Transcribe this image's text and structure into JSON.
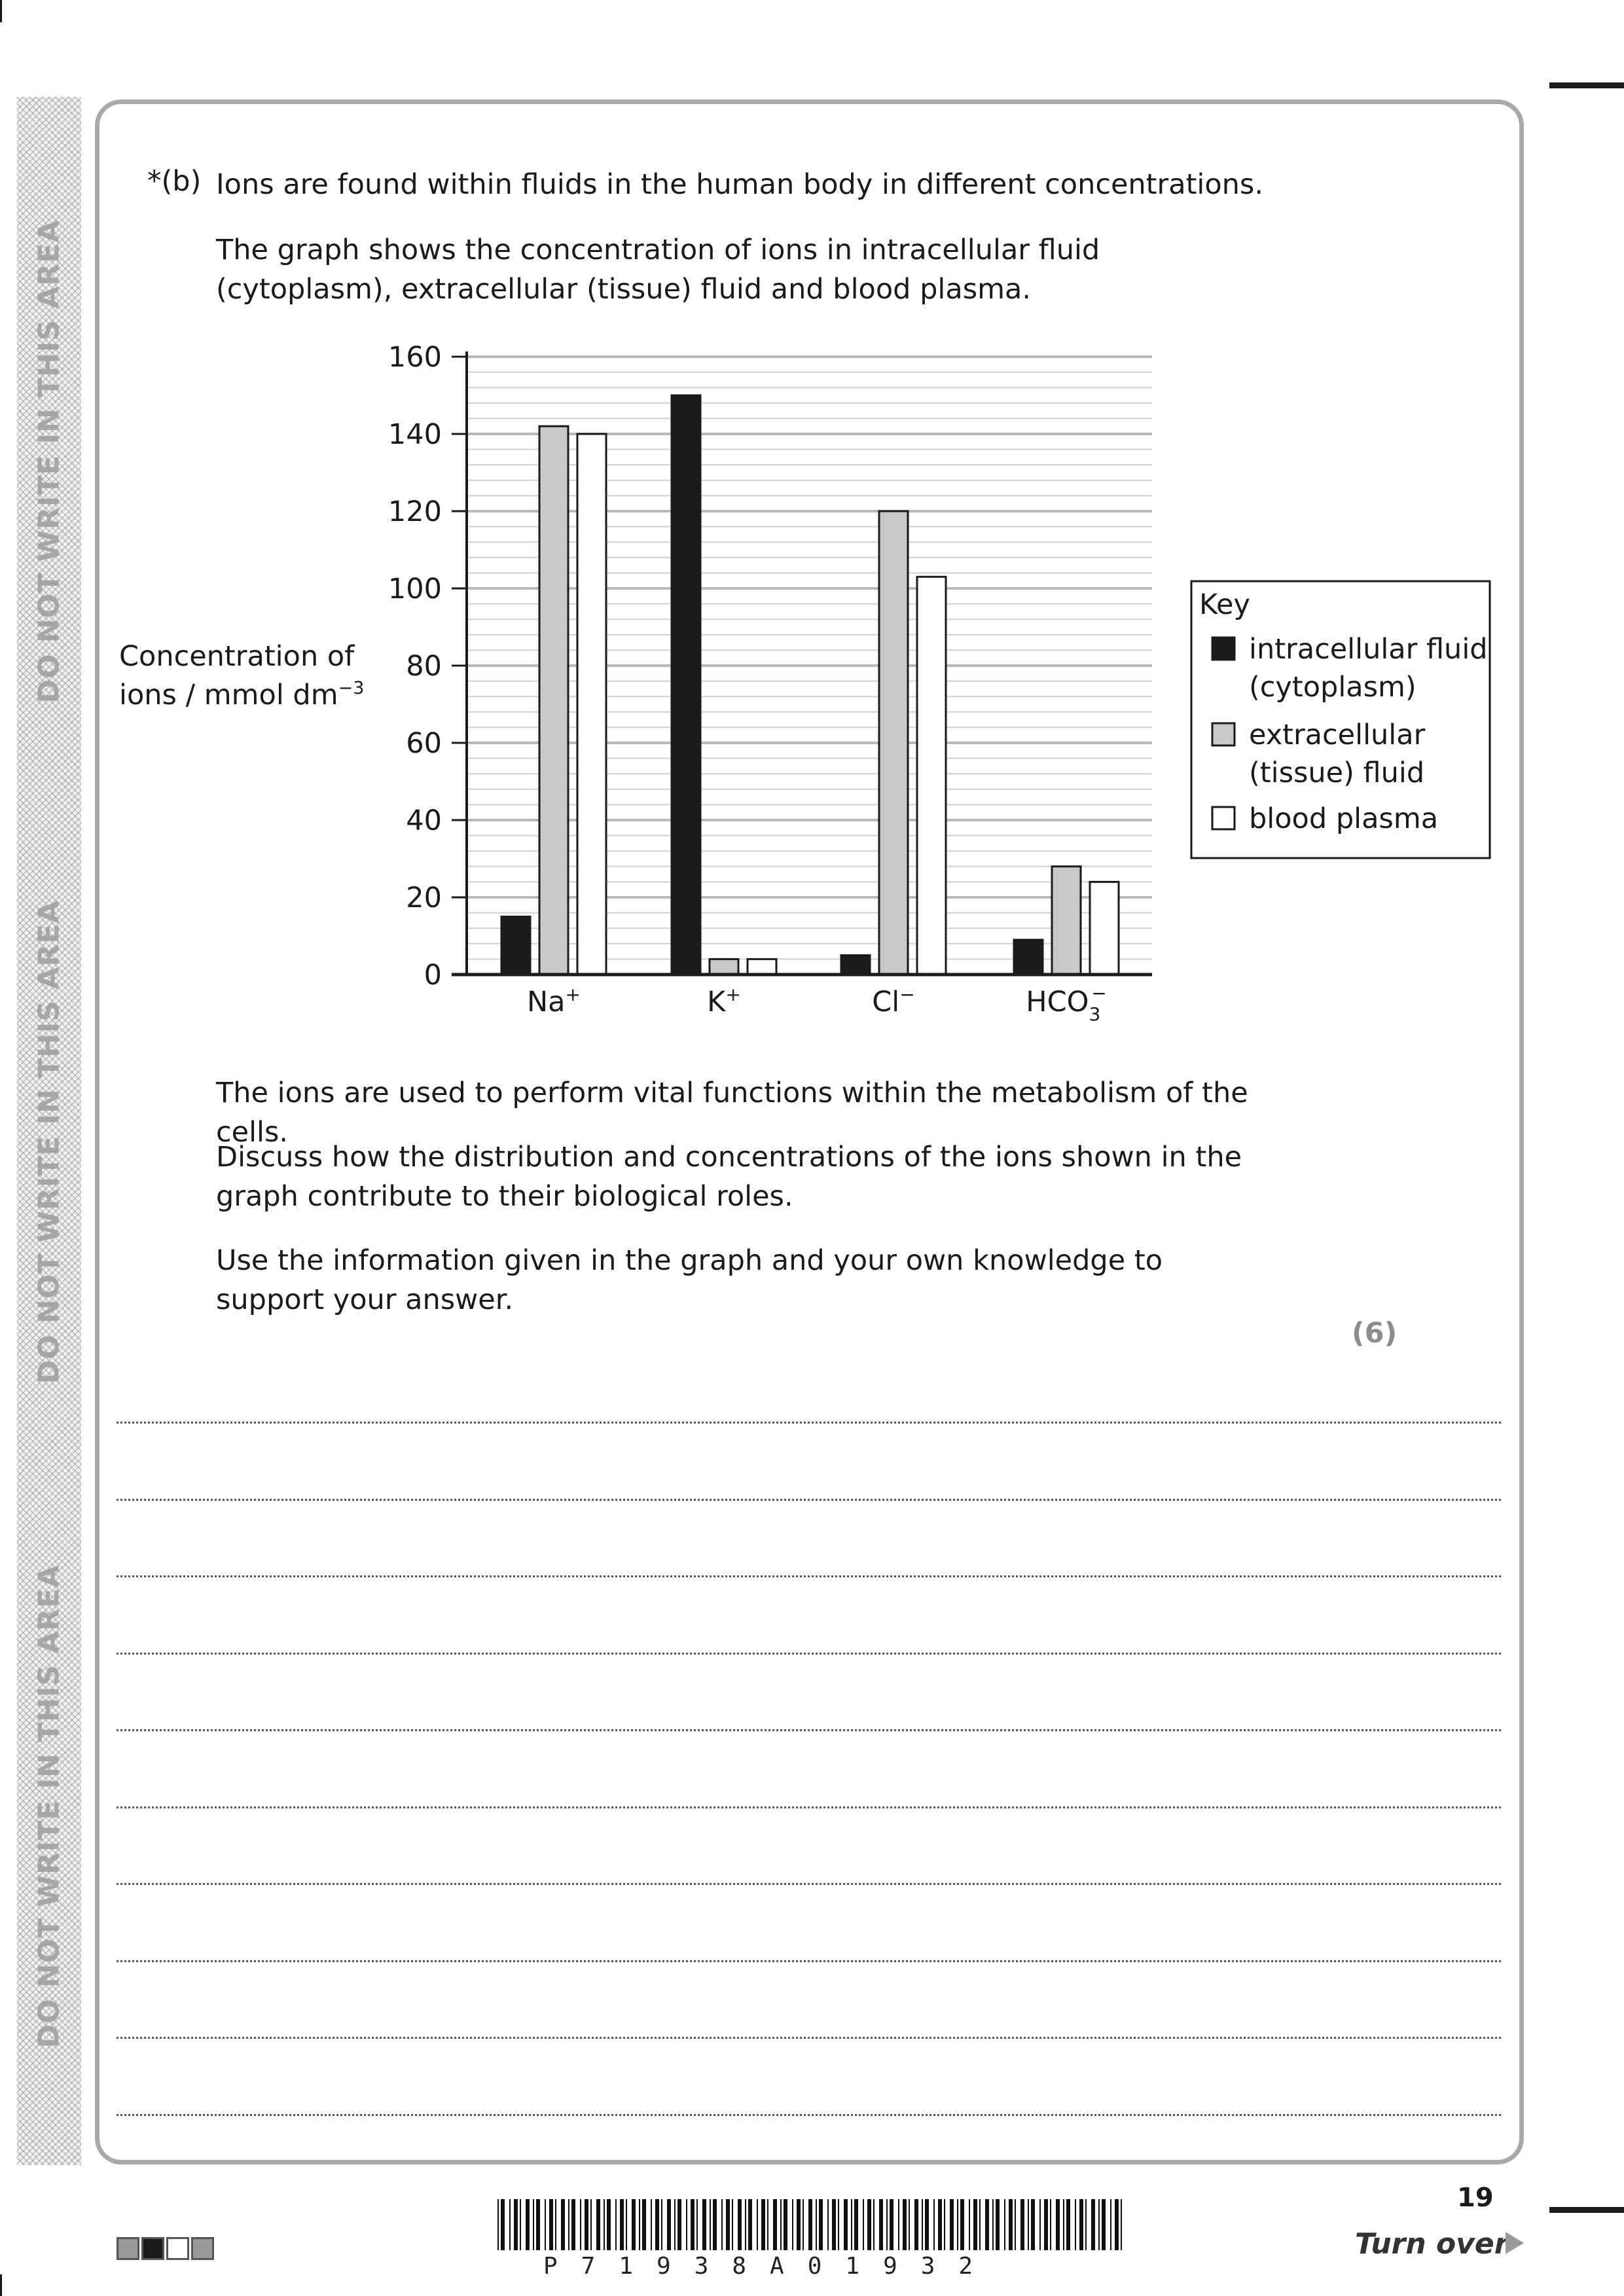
{
  "margin_labels": [
    "DO NOT WRITE IN THIS AREA",
    "DO NOT WRITE IN THIS AREA",
    "DO NOT WRITE IN THIS AREA"
  ],
  "question": {
    "label": "*(b)",
    "intro": "Ions are found within fluids in the human body in different concentrations.",
    "graph_text": "The graph shows the concentration of ions in intracellular fluid (cytoplasm), extracellular (tissue) fluid and blood plasma.",
    "vital_text": "The ions are used to perform vital functions within the metabolism of the cells.",
    "discuss_text": "Discuss how the distribution and concentrations of the ions shown in the graph contribute to their biological roles.",
    "use_text": "Use the information given in the graph and your own knowledge to support your answer.",
    "marks": "(6)"
  },
  "chart_data": {
    "type": "bar",
    "ylabel_line1": "Concentration of",
    "ylabel_line2": "ions / mmol dm",
    "ylabel_exp": "−3",
    "ylim": [
      0,
      160
    ],
    "yticks": [
      "0",
      "20",
      "40",
      "60",
      "80",
      "100",
      "120",
      "140",
      "160"
    ],
    "categories": [
      {
        "base": "Na",
        "sup": "+",
        "sub": ""
      },
      {
        "base": "K",
        "sup": "+",
        "sub": ""
      },
      {
        "base": "Cl",
        "sup": "−",
        "sub": ""
      },
      {
        "base": "HCO",
        "sup": "−",
        "sub": "3"
      }
    ],
    "series": [
      {
        "name": "intracellular fluid (cytoplasm)",
        "legend_line1": "intracellular fluid",
        "legend_line2": "(cytoplasm)",
        "color": "#1a1a1a",
        "values": [
          15,
          150,
          5,
          9
        ]
      },
      {
        "name": "extracellular (tissue) fluid",
        "legend_line1": "extracellular",
        "legend_line2": "(tissue) fluid",
        "color": "#c8c8c8",
        "values": [
          142,
          4,
          120,
          28
        ]
      },
      {
        "name": "blood plasma",
        "legend_line1": "blood plasma",
        "legend_line2": "",
        "color": "#ffffff",
        "values": [
          140,
          4,
          103,
          24
        ]
      }
    ],
    "legend_title": "Key",
    "grid": true
  },
  "footer": {
    "page_number": "19",
    "turn_over": "Turn over",
    "barcode_text": "P71938A01932"
  }
}
